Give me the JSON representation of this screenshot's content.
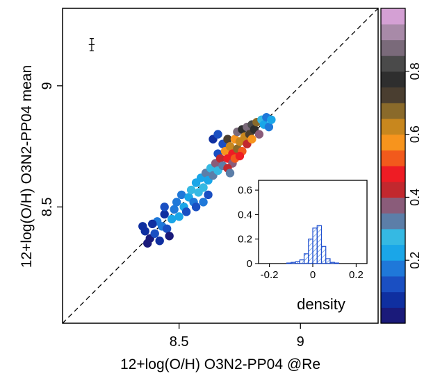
{
  "chart_data": [
    {
      "type": "scatter",
      "title": "",
      "xlabel": "12+log(O/H) O3N2-PP04 @Re",
      "ylabel": "12+log(O/H) O3N2-PP04 mean",
      "xlim": [
        8.02,
        9.32
      ],
      "ylim": [
        8.02,
        9.32
      ],
      "xticks": [
        "8.5",
        "9"
      ],
      "yticks": [
        "8.5",
        "9"
      ],
      "one_to_one_line": true,
      "error_bar_example": {
        "x": 8.14,
        "y": 9.17,
        "xerr": 0.012,
        "yerr": 0.025
      },
      "colorbar": {
        "range": [
          0,
          1
        ],
        "ticks": [
          "0.2",
          "0.4",
          "0.6",
          "0.8"
        ],
        "colors": [
          "#1a1a7a",
          "#0f2fa0",
          "#1a4fc2",
          "#1f78d9",
          "#1aa6e8",
          "#35b9e3",
          "#5c7ea8",
          "#8a5c7a",
          "#c2282e",
          "#ee1c24",
          "#f25a1c",
          "#f7941d",
          "#c8871e",
          "#8a6a2a",
          "#4a3e30",
          "#2e2e2e",
          "#4a4a4a",
          "#7a6a7a",
          "#a88aa8",
          "#d4a0d4"
        ]
      },
      "points": [
        {
          "x": 8.35,
          "y": 8.42,
          "c": 0.05
        },
        {
          "x": 8.36,
          "y": 8.4,
          "c": 0.08
        },
        {
          "x": 8.38,
          "y": 8.37,
          "c": 0.03
        },
        {
          "x": 8.4,
          "y": 8.39,
          "c": 0.12
        },
        {
          "x": 8.42,
          "y": 8.36,
          "c": 0.06
        },
        {
          "x": 8.41,
          "y": 8.44,
          "c": 0.15
        },
        {
          "x": 8.43,
          "y": 8.42,
          "c": 0.18
        },
        {
          "x": 8.45,
          "y": 8.41,
          "c": 0.14
        },
        {
          "x": 8.44,
          "y": 8.47,
          "c": 0.09
        },
        {
          "x": 8.47,
          "y": 8.45,
          "c": 0.2
        },
        {
          "x": 8.48,
          "y": 8.49,
          "c": 0.17
        },
        {
          "x": 8.46,
          "y": 8.38,
          "c": 0.04
        },
        {
          "x": 8.5,
          "y": 8.46,
          "c": 0.22
        },
        {
          "x": 8.49,
          "y": 8.52,
          "c": 0.19
        },
        {
          "x": 8.52,
          "y": 8.5,
          "c": 0.24
        },
        {
          "x": 8.51,
          "y": 8.55,
          "c": 0.16
        },
        {
          "x": 8.53,
          "y": 8.48,
          "c": 0.13
        },
        {
          "x": 8.54,
          "y": 8.54,
          "c": 0.21
        },
        {
          "x": 8.55,
          "y": 8.57,
          "c": 0.26
        },
        {
          "x": 8.56,
          "y": 8.52,
          "c": 0.18
        },
        {
          "x": 8.57,
          "y": 8.6,
          "c": 0.23
        },
        {
          "x": 8.58,
          "y": 8.56,
          "c": 0.28
        },
        {
          "x": 8.59,
          "y": 8.62,
          "c": 0.2
        },
        {
          "x": 8.6,
          "y": 8.58,
          "c": 0.25
        },
        {
          "x": 8.61,
          "y": 8.64,
          "c": 0.3
        },
        {
          "x": 8.62,
          "y": 8.61,
          "c": 0.22
        },
        {
          "x": 8.63,
          "y": 8.66,
          "c": 0.27
        },
        {
          "x": 8.62,
          "y": 8.55,
          "c": 0.1
        },
        {
          "x": 8.64,
          "y": 8.63,
          "c": 0.32
        },
        {
          "x": 8.65,
          "y": 8.68,
          "c": 0.35
        },
        {
          "x": 8.66,
          "y": 8.65,
          "c": 0.29
        },
        {
          "x": 8.66,
          "y": 8.72,
          "c": 0.14
        },
        {
          "x": 8.67,
          "y": 8.7,
          "c": 0.4
        },
        {
          "x": 8.68,
          "y": 8.67,
          "c": 0.33
        },
        {
          "x": 8.68,
          "y": 8.76,
          "c": 0.12
        },
        {
          "x": 8.69,
          "y": 8.73,
          "c": 0.55
        },
        {
          "x": 8.7,
          "y": 8.7,
          "c": 0.45
        },
        {
          "x": 8.7,
          "y": 8.78,
          "c": 0.72
        },
        {
          "x": 8.71,
          "y": 8.75,
          "c": 0.62
        },
        {
          "x": 8.72,
          "y": 8.72,
          "c": 0.48
        },
        {
          "x": 8.72,
          "y": 8.68,
          "c": 0.38
        },
        {
          "x": 8.73,
          "y": 8.78,
          "c": 0.58
        },
        {
          "x": 8.74,
          "y": 8.74,
          "c": 0.66
        },
        {
          "x": 8.74,
          "y": 8.81,
          "c": 0.85
        },
        {
          "x": 8.75,
          "y": 8.77,
          "c": 0.6
        },
        {
          "x": 8.76,
          "y": 8.73,
          "c": 0.52
        },
        {
          "x": 8.76,
          "y": 8.82,
          "c": 0.78
        },
        {
          "x": 8.77,
          "y": 8.79,
          "c": 0.64
        },
        {
          "x": 8.78,
          "y": 8.76,
          "c": 0.42
        },
        {
          "x": 8.78,
          "y": 8.83,
          "c": 0.88
        },
        {
          "x": 8.79,
          "y": 8.8,
          "c": 0.7
        },
        {
          "x": 8.8,
          "y": 8.84,
          "c": 0.8
        },
        {
          "x": 8.8,
          "y": 8.78,
          "c": 0.57
        },
        {
          "x": 8.81,
          "y": 8.82,
          "c": 0.75
        },
        {
          "x": 8.82,
          "y": 8.85,
          "c": 0.68
        },
        {
          "x": 8.83,
          "y": 8.8,
          "c": 0.36
        },
        {
          "x": 8.84,
          "y": 8.86,
          "c": 0.26
        },
        {
          "x": 8.85,
          "y": 8.84,
          "c": 0.21
        },
        {
          "x": 8.86,
          "y": 8.87,
          "c": 0.18
        },
        {
          "x": 8.87,
          "y": 8.83,
          "c": 0.15
        },
        {
          "x": 8.88,
          "y": 8.86,
          "c": 0.24
        },
        {
          "x": 8.64,
          "y": 8.78,
          "c": 0.08
        },
        {
          "x": 8.66,
          "y": 8.8,
          "c": 0.12
        },
        {
          "x": 8.7,
          "y": 8.66,
          "c": 0.44
        },
        {
          "x": 8.73,
          "y": 8.7,
          "c": 0.5
        },
        {
          "x": 8.75,
          "y": 8.71,
          "c": 0.46
        },
        {
          "x": 8.71,
          "y": 8.64,
          "c": 0.34
        },
        {
          "x": 8.6,
          "y": 8.52,
          "c": 0.16
        },
        {
          "x": 8.57,
          "y": 8.5,
          "c": 0.12
        },
        {
          "x": 8.44,
          "y": 8.5,
          "c": 0.11
        },
        {
          "x": 8.39,
          "y": 8.43,
          "c": 0.07
        },
        {
          "x": 8.37,
          "y": 8.35,
          "c": 0.02
        }
      ],
      "inset": {
        "type": "bar",
        "title": "density",
        "xlim": [
          -0.25,
          0.25
        ],
        "ylim": [
          0,
          0.68
        ],
        "xticks": [
          "-0.2",
          "0",
          "0.2"
        ],
        "yticks": [
          "0",
          "0.2",
          "0.4",
          "0.6"
        ],
        "bin_edges": [
          -0.12,
          -0.1,
          -0.08,
          -0.06,
          -0.04,
          -0.02,
          0.0,
          0.02,
          0.04,
          0.06,
          0.08,
          0.1,
          0.12
        ],
        "values": [
          0.005,
          0.01,
          0.015,
          0.03,
          0.08,
          0.2,
          0.29,
          0.31,
          0.14,
          0.04,
          0.01,
          0.005
        ]
      }
    }
  ]
}
